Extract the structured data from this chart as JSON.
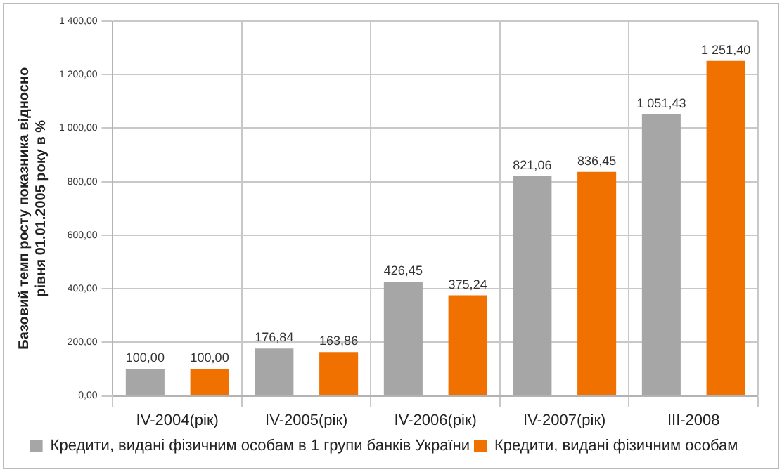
{
  "chart_data": {
    "type": "bar",
    "ylabel": "Базовий темп росту показника відносно рівня 01.01.2005 року в %",
    "categories": [
      "IV-2004(рік)",
      "IV-2005(рік)",
      "IV-2006(рік)",
      "IV-2007(рік)",
      "III-2008"
    ],
    "series": [
      {
        "name": "Кредити, видані фізичним особам в 1 групи банків України",
        "color": "#a6a6a6",
        "values": [
          100,
          176.84,
          426.45,
          821.06,
          1051.43
        ],
        "value_labels": [
          "100,00",
          "176,84",
          "426,45",
          "821,06",
          "1 051,43"
        ]
      },
      {
        "name": "Кредити, видані фізичним особам",
        "color": "#f07000",
        "values": [
          100,
          163.86,
          375.24,
          836.45,
          1251.4
        ],
        "value_labels": [
          "100,00",
          "163,86",
          "375,24",
          "836,45",
          "1 251,40"
        ]
      }
    ],
    "ylim": [
      0,
      1400
    ],
    "yticks": [
      {
        "value": 0,
        "label": "0,00"
      },
      {
        "value": 200,
        "label": "200,00"
      },
      {
        "value": 400,
        "label": "400,00"
      },
      {
        "value": 600,
        "label": "600,00"
      },
      {
        "value": 800,
        "label": "800,00"
      },
      {
        "value": 1000,
        "label": "1 000,00"
      },
      {
        "value": 1200,
        "label": "1 200,00"
      },
      {
        "value": 1400,
        "label": "1 400,00"
      }
    ],
    "grid": true,
    "legend": "bottom"
  }
}
